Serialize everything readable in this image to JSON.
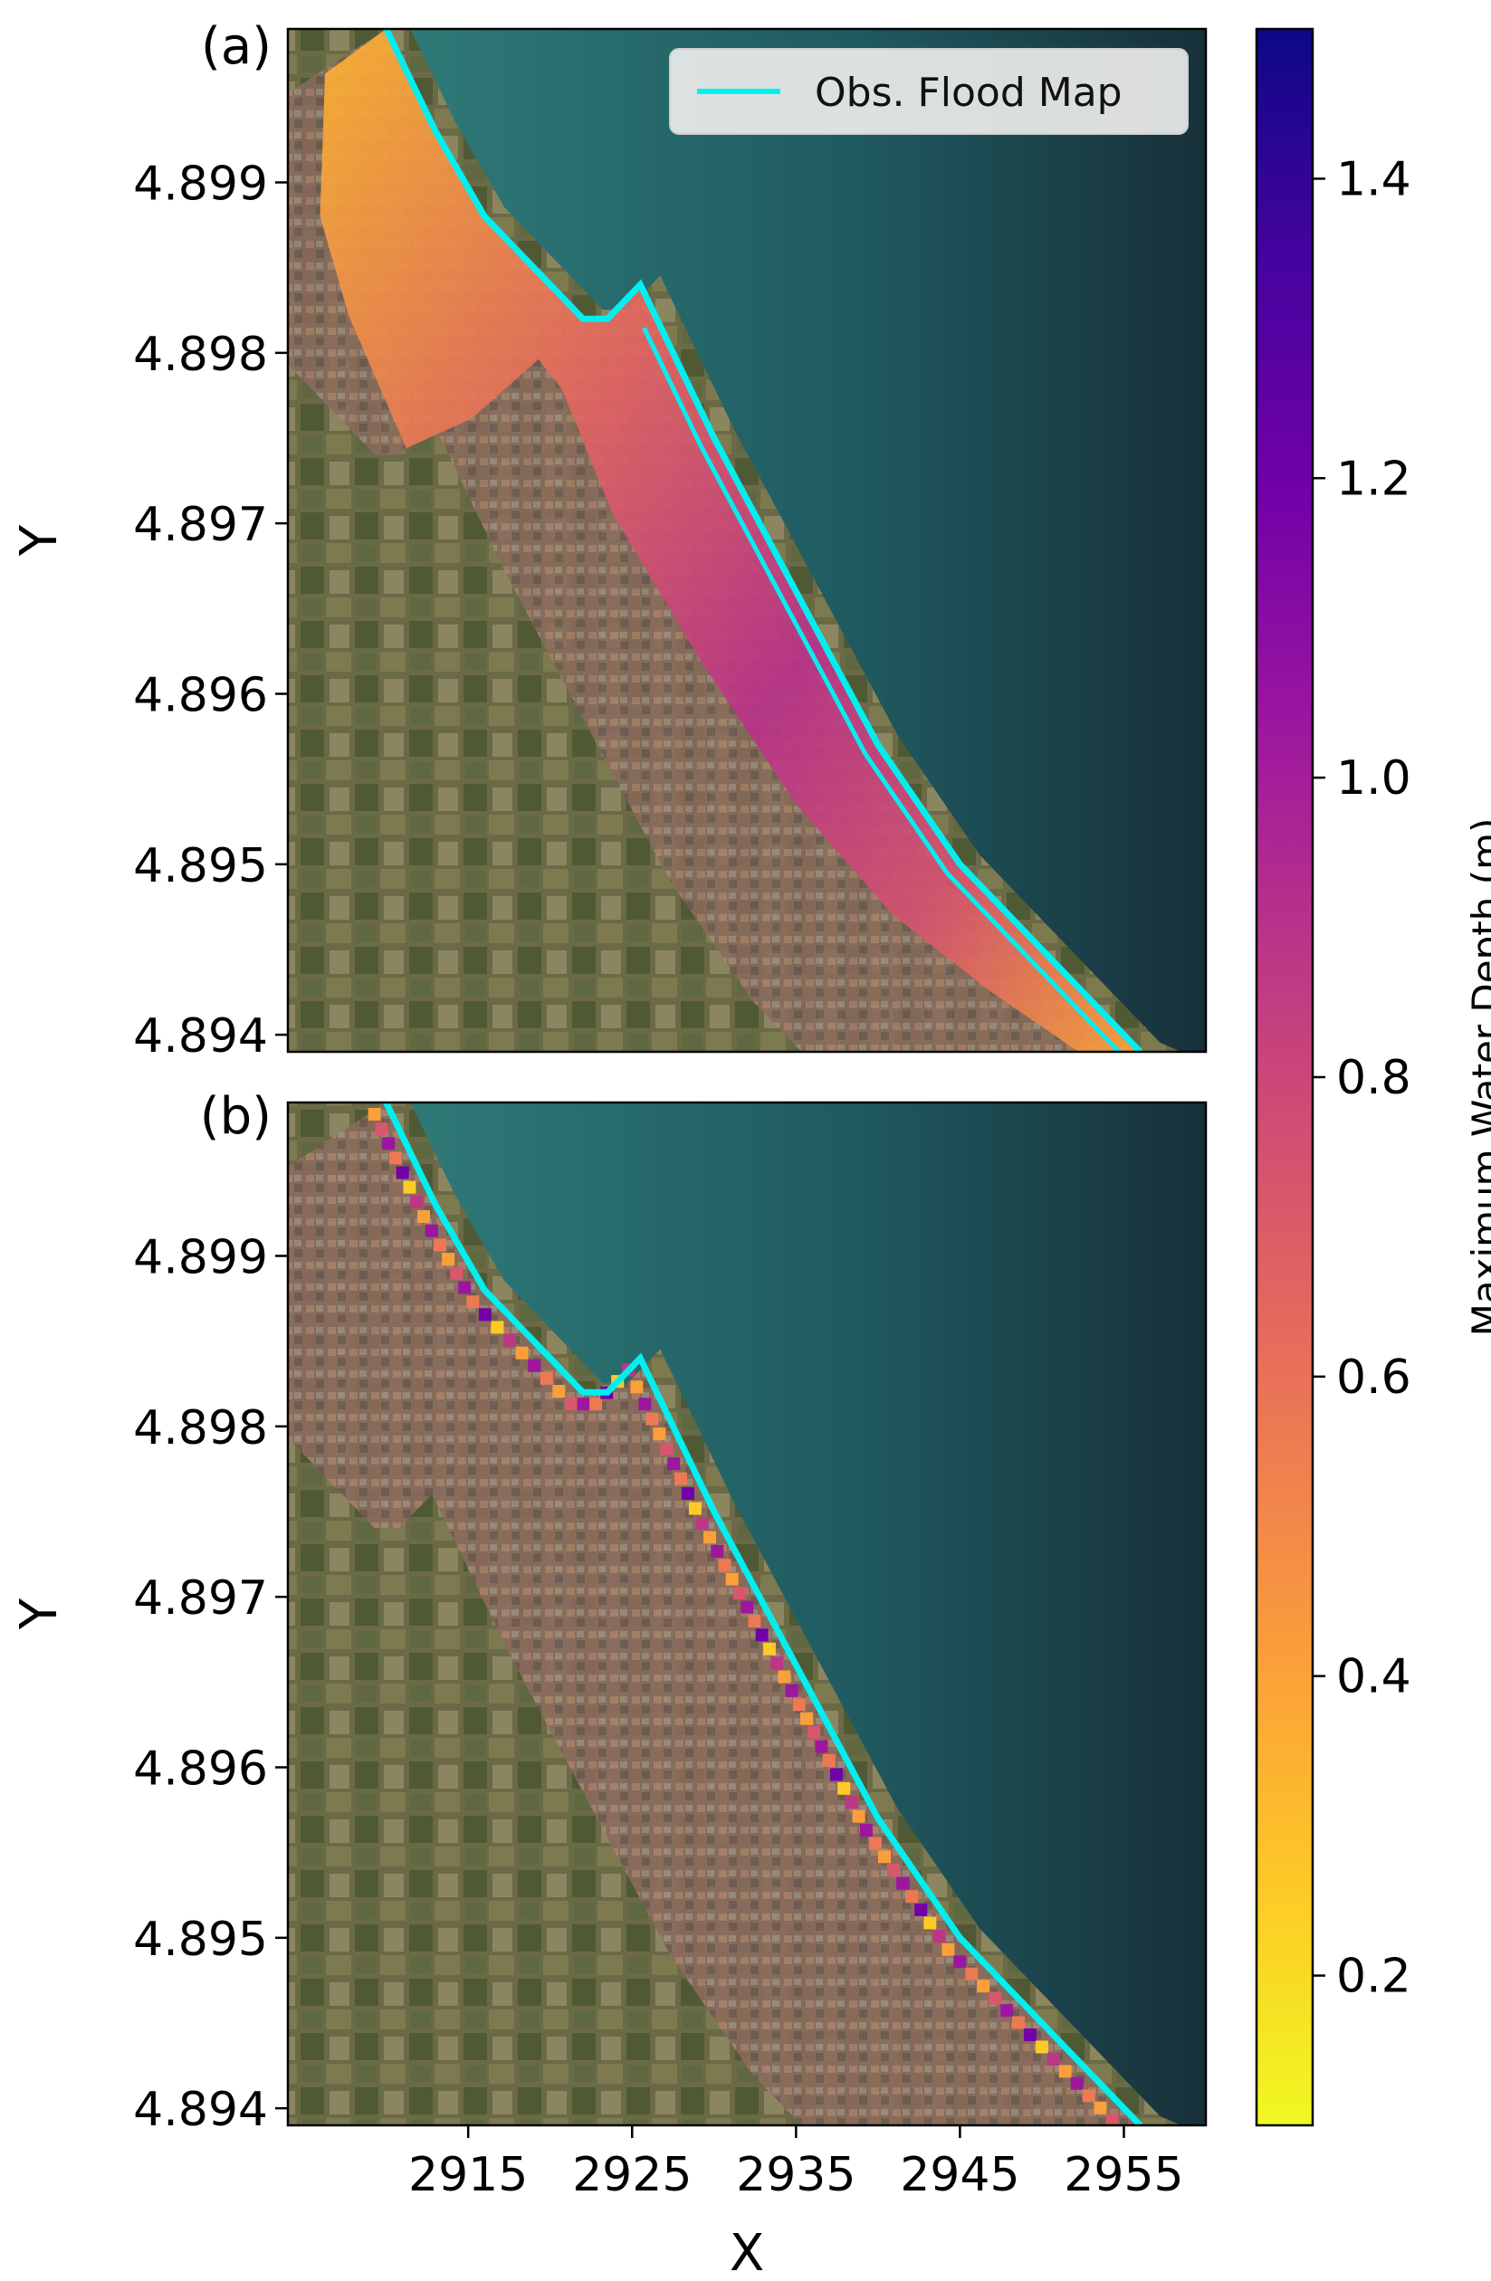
{
  "chart_data": [
    {
      "type": "heatmap",
      "panel_label": "(a)",
      "xlabel": "",
      "ylabel": "Y",
      "xlim": [
        2904,
        2960
      ],
      "ylim": [
        4.8939,
        4.8999
      ],
      "y_ticks": [
        "4.899",
        "4.898",
        "4.897",
        "4.896",
        "4.895",
        "4.894"
      ],
      "y_tick_values": [
        4.899,
        4.898,
        4.897,
        4.896,
        4.895,
        4.894
      ],
      "x_ticks": [],
      "legend": {
        "position": "top-right",
        "entries": [
          "Obs. Flood Map"
        ]
      },
      "observed_flood_outline": {
        "name": "Obs. Flood Map",
        "color": "#00f0f0",
        "x": [
          2910,
          2913,
          2916,
          2919,
          2922,
          2923.5,
          2925.5,
          2926.5,
          2930,
          2935,
          2940,
          2945,
          2950,
          2955,
          2956
        ],
        "y": [
          4.8999,
          4.8993,
          4.8988,
          4.8985,
          4.8982,
          4.8982,
          4.8984,
          4.8982,
          4.8975,
          4.8966,
          4.8957,
          4.895,
          4.8945,
          4.894,
          4.8939
        ]
      },
      "flood_extent": "wide band (up to ~1.1 m) along the coast"
    },
    {
      "type": "heatmap",
      "panel_label": "(b)",
      "xlabel": "X",
      "ylabel": "Y",
      "xlim": [
        2904,
        2960
      ],
      "ylim": [
        4.8939,
        4.8999
      ],
      "y_ticks": [
        "4.899",
        "4.898",
        "4.897",
        "4.896",
        "4.895",
        "4.894"
      ],
      "y_tick_values": [
        4.899,
        4.898,
        4.897,
        4.896,
        4.895,
        4.894
      ],
      "x_ticks": [
        "2915",
        "2925",
        "2935",
        "2945",
        "2955"
      ],
      "x_tick_values": [
        2915,
        2925,
        2935,
        2945,
        2955
      ],
      "observed_flood_outline": {
        "name": "Obs. Flood Map",
        "color": "#00f0f0",
        "x": [
          2910,
          2913,
          2916,
          2919,
          2922,
          2923.5,
          2925.5,
          2926.5,
          2930,
          2935,
          2940,
          2945,
          2950,
          2955,
          2956
        ],
        "y": [
          4.8999,
          4.8993,
          4.8988,
          4.8985,
          4.8982,
          4.8982,
          4.8984,
          4.8982,
          4.8975,
          4.8966,
          4.8957,
          4.895,
          4.8945,
          4.894,
          4.8939
        ]
      },
      "flood_extent": "narrow strip along the shoreline"
    }
  ],
  "colorbar": {
    "label": "Maximum Water Depth (m)",
    "colormap": "plasma_r",
    "range": [
      0.1,
      1.5
    ],
    "ticks": [
      "0.2",
      "0.4",
      "0.6",
      "0.8",
      "1.0",
      "1.2",
      "1.4"
    ],
    "tick_values": [
      0.2,
      0.4,
      0.6,
      0.8,
      1.0,
      1.2,
      1.4
    ],
    "colors": [
      "#f0f921",
      "#fdca26",
      "#fb9f3a",
      "#ed7953",
      "#d8576b",
      "#bd3786",
      "#9c179e",
      "#7201a8",
      "#46039f",
      "#0d0887"
    ]
  },
  "colors": {
    "sea": "#1f5c5e",
    "deep_sea": "#18343c",
    "land": "#6e6a48",
    "urban": "#8a6a5c",
    "outline": "#00f0f0"
  }
}
